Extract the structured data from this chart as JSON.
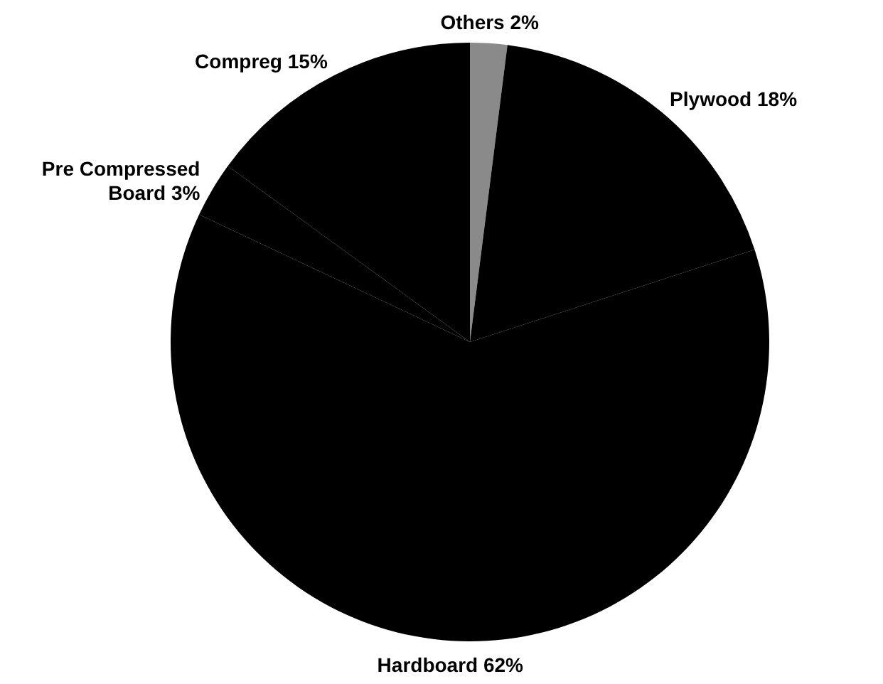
{
  "chart_data": {
    "type": "pie",
    "categories": [
      "Others",
      "Plywood",
      "Hardboard",
      "Pre Compressed Board",
      "Compreg"
    ],
    "values": [
      2,
      18,
      62,
      3,
      15
    ],
    "value_labels": [
      "2%",
      "18%",
      "62%",
      "3%",
      "15%"
    ],
    "colors": [
      "#8a8a8a",
      "#000000",
      "#000000",
      "#000000",
      "#000000"
    ],
    "legend": false
  }
}
